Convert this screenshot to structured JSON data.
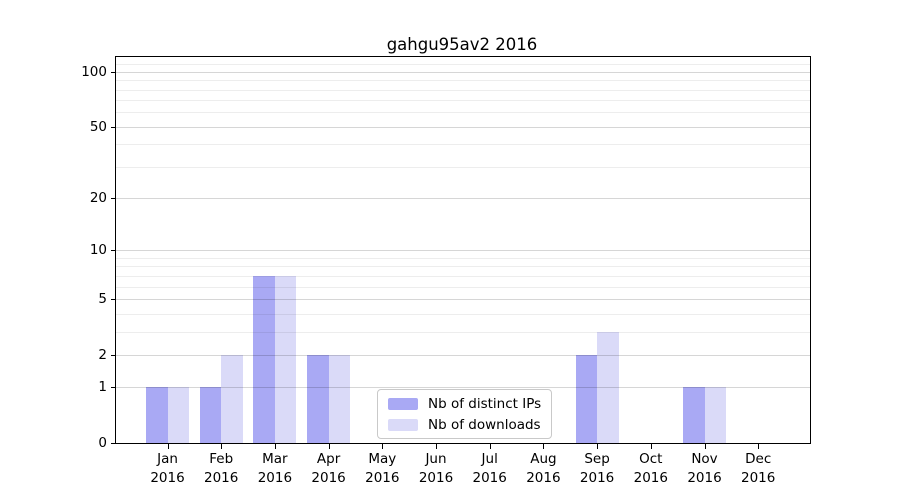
{
  "chart_data": {
    "type": "bar",
    "title": "gahgu95av2 2016",
    "x": {
      "months": [
        "Jan",
        "Feb",
        "Mar",
        "Apr",
        "May",
        "Jun",
        "Jul",
        "Aug",
        "Sep",
        "Oct",
        "Nov",
        "Dec"
      ],
      "year": "2016"
    },
    "series": [
      {
        "name": "Nb of distinct IPs",
        "color": "#a9a9f4",
        "values": [
          1,
          1,
          7,
          2,
          0,
          0,
          0,
          0,
          2,
          0,
          1,
          0
        ]
      },
      {
        "name": "Nb of downloads",
        "color": "#dadaf8",
        "values": [
          1,
          2,
          7,
          2,
          0,
          0,
          0,
          0,
          3,
          0,
          1,
          0
        ]
      }
    ],
    "y_axis": {
      "tick_values": [
        0,
        1,
        2,
        5,
        10,
        20,
        50,
        100
      ],
      "minor_gridlines": [
        3,
        4,
        6,
        7,
        8,
        9,
        30,
        40,
        60,
        70,
        80,
        90,
        110
      ],
      "scale": "log1p",
      "ylim": [
        0,
        120
      ]
    },
    "legend": {
      "location": "lower center"
    },
    "grid": "both",
    "colors": {
      "axis": "#000000",
      "background": "#ffffff"
    }
  }
}
